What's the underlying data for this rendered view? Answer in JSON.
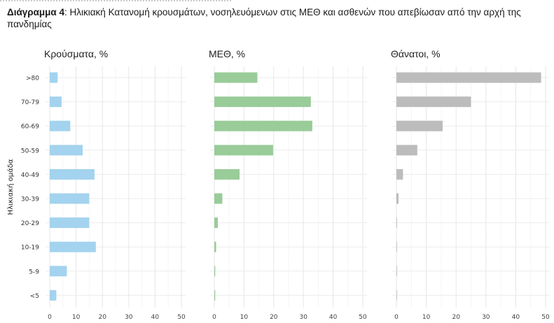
{
  "caption": {
    "label": "Διάγραμμα 4",
    "text": ": Ηλικιακή Κατανομή κρουσμάτων, νοσηλευόμενων στις ΜΕΘ και ασθενών που απεβίωσαν από την αρχή της πανδημίας"
  },
  "chart_data": {
    "type": "bar",
    "orientation": "horizontal",
    "ylabel": "Ηλικιακή ομάδα",
    "categories": [
      ">80",
      "70-79",
      "60-69",
      "50-59",
      "40-49",
      "30-39",
      "20-29",
      "10-19",
      "5-9",
      "<5"
    ],
    "xlim": [
      0,
      50
    ],
    "xticks": [
      0,
      10,
      20,
      30,
      40,
      50
    ],
    "grid": true,
    "panels": [
      {
        "title": "Κρούσματα, %",
        "color": "#a3d3ee",
        "values": [
          3.0,
          4.5,
          7.8,
          12.5,
          17.0,
          15.0,
          15.0,
          17.5,
          6.5,
          2.5
        ]
      },
      {
        "title": "ΜΕΘ, %",
        "color": "#99cc99",
        "values": [
          14.5,
          32.5,
          33.0,
          19.8,
          8.5,
          2.7,
          1.2,
          0.6,
          0.3,
          0.3
        ]
      },
      {
        "title": "Θάνατοι, %",
        "color": "#bcbcbc",
        "values": [
          48.5,
          25.0,
          15.5,
          7.0,
          2.2,
          0.7,
          0.2,
          0.1,
          0.05,
          0.05
        ]
      }
    ]
  }
}
